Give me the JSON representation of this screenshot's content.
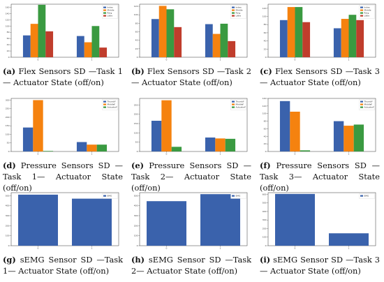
{
  "colors": {
    "s0": "#3a62ac",
    "s1": "#f5820f",
    "s2": "#3a9a41",
    "s3": "#c03d2c"
  },
  "panels": [
    {
      "id": "a",
      "label": "(a)",
      "caption": "Flex Sensors SD —Task 1— Actuator State (off/on)",
      "chart_data": {
        "type": "bar",
        "categories": [
          "0",
          "1"
        ],
        "series": [
          {
            "name": "Index",
            "values": [
              70,
              68
            ]
          },
          {
            "name": "Middle",
            "values": [
              107,
              48
            ]
          },
          {
            "name": "Ring",
            "values": [
              168,
              100
            ]
          },
          {
            "name": "Little",
            "values": [
              83,
              31
            ]
          }
        ],
        "yticks": [
          0,
          20,
          40,
          60,
          80,
          100,
          120,
          140,
          160
        ],
        "ylim": [
          0,
          170
        ],
        "legend": "top-right"
      }
    },
    {
      "id": "b",
      "label": "(b)",
      "caption": "Flex Sensors SD —Task 2— Actuator State (off/on)",
      "chart_data": {
        "type": "bar",
        "categories": [
          "0",
          "1"
        ],
        "series": [
          {
            "name": "Index",
            "values": [
              90,
              78
            ]
          },
          {
            "name": "Middle",
            "values": [
              121,
              55
            ]
          },
          {
            "name": "Ring",
            "values": [
              113,
              79
            ]
          },
          {
            "name": "Little",
            "values": [
              71,
              38
            ]
          }
        ],
        "yticks": [
          0,
          20,
          40,
          60,
          80,
          100,
          120
        ],
        "ylim": [
          0,
          125
        ],
        "legend": "top-right"
      }
    },
    {
      "id": "c",
      "label": "(c)",
      "caption": "Flex Sensors SD —Task 3— Actuator State (off/on)",
      "chart_data": {
        "type": "bar",
        "categories": [
          "0",
          "1"
        ],
        "series": [
          {
            "name": "Index",
            "values": [
              91,
              71
            ]
          },
          {
            "name": "Middle",
            "values": [
              123,
              94
            ]
          },
          {
            "name": "Ring",
            "values": [
              123,
              104
            ]
          },
          {
            "name": "Little",
            "values": [
              86,
              91
            ]
          }
        ],
        "yticks": [
          0,
          20,
          40,
          60,
          80,
          100,
          120
        ],
        "ylim": [
          0,
          130
        ],
        "legend": "top-right"
      }
    },
    {
      "id": "d",
      "label": "(d)",
      "caption": "Pressure Sensors SD —Task 1— Actuator State (off/on)",
      "chart_data": {
        "type": "bar",
        "categories": [
          "0",
          "1"
        ],
        "series": [
          {
            "name": "ThumbF",
            "values": [
              140,
              55
            ]
          },
          {
            "name": "MiddleF",
            "values": [
              300,
              40
            ]
          },
          {
            "name": "ActuatorF",
            "values": [
              3,
              40
            ]
          }
        ],
        "yticks": [
          0,
          50,
          100,
          150,
          200,
          250,
          300
        ],
        "ylim": [
          0,
          310
        ],
        "legend": "top-right"
      }
    },
    {
      "id": "e",
      "label": "(e)",
      "caption": "Pressure Sensors SD —Task 2— Actuator State (off/on)",
      "chart_data": {
        "type": "bar",
        "categories": [
          "0",
          "1"
        ],
        "series": [
          {
            "name": "ThumbF",
            "values": [
              165,
              75
            ]
          },
          {
            "name": "MiddleF",
            "values": [
              275,
              70
            ]
          },
          {
            "name": "ActuatorF",
            "values": [
              25,
              68
            ]
          }
        ],
        "yticks": [
          0,
          50,
          100,
          150,
          200,
          250
        ],
        "ylim": [
          0,
          285
        ],
        "legend": "top-right"
      }
    },
    {
      "id": "f",
      "label": "(f)",
      "caption": "Pressure Sensors SD —Task 3— Actuator State (off/on)",
      "chart_data": {
        "type": "bar",
        "categories": [
          "0",
          "1"
        ],
        "series": [
          {
            "name": "ThumbF",
            "values": [
              133,
              80
            ]
          },
          {
            "name": "MiddleF",
            "values": [
              105,
              68
            ]
          },
          {
            "name": "ActuatorF",
            "values": [
              3,
              71
            ]
          }
        ],
        "yticks": [
          0,
          20,
          40,
          60,
          80,
          100,
          120,
          140
        ],
        "ylim": [
          0,
          140
        ],
        "legend": "top-right"
      }
    },
    {
      "id": "g",
      "label": "(g)",
      "caption": "sEMG Sensor SD —Task 1— Actuator State (off/on)",
      "chart_data": {
        "type": "bar",
        "categories": [
          "0",
          "1"
        ],
        "series": [
          {
            "name": "EMG",
            "values": [
              510,
              470
            ]
          }
        ],
        "yticks": [
          0,
          100,
          200,
          300,
          400,
          500
        ],
        "ylim": [
          0,
          530
        ],
        "legend": "top-right"
      }
    },
    {
      "id": "h",
      "label": "(h)",
      "caption": "sEMG Sensor SD —Task 2— Actuator State (off/on)",
      "chart_data": {
        "type": "bar",
        "categories": [
          "0",
          "1"
        ],
        "series": [
          {
            "name": "EMG",
            "values": [
              445,
              515
            ]
          }
        ],
        "yticks": [
          0,
          100,
          200,
          300,
          400,
          500
        ],
        "ylim": [
          0,
          530
        ],
        "legend": "top-right"
      }
    },
    {
      "id": "i",
      "label": "(i)",
      "caption": "sEMG Sensor SD —Task 3— Actuator State (off/on)",
      "chart_data": {
        "type": "bar",
        "categories": [
          "0",
          "1"
        ],
        "series": [
          {
            "name": "EMG",
            "values": [
              605,
              145
            ]
          }
        ],
        "yticks": [
          0,
          100,
          200,
          300,
          400,
          500,
          600
        ],
        "ylim": [
          0,
          620
        ],
        "legend": "top-right"
      }
    }
  ]
}
